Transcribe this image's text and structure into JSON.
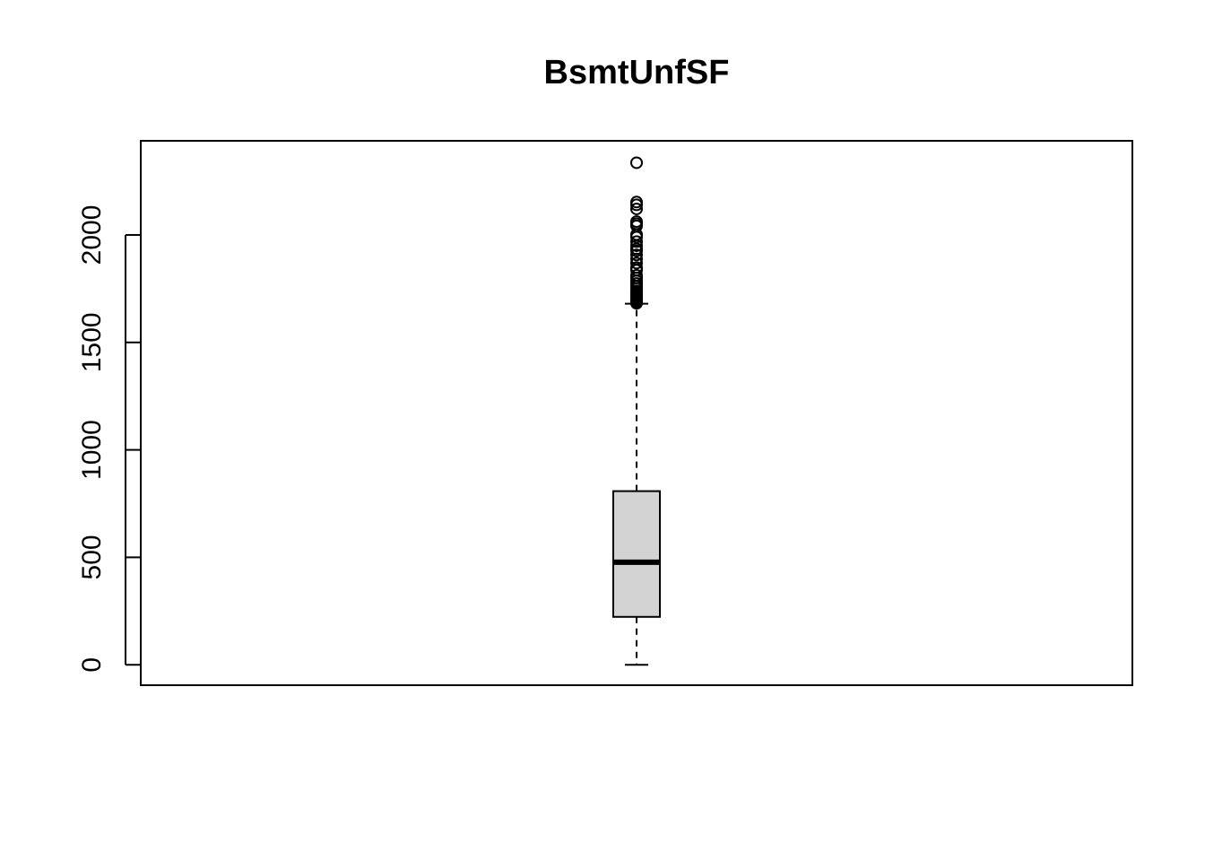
{
  "chart_data": {
    "type": "boxplot",
    "title": "BsmtUnfSF",
    "xlabel": "",
    "ylabel": "",
    "ylim": [
      -95,
      2438
    ],
    "y_ticks": [
      0,
      500,
      1000,
      1500,
      2000
    ],
    "y_tick_labels": [
      "0",
      "500",
      "1000",
      "1500",
      "2000"
    ],
    "grid": false,
    "colors": {
      "box_fill": "#d3d3d3",
      "stroke": "#000000",
      "background": "#ffffff"
    },
    "box": {
      "min": 0,
      "q1": 223,
      "median": 477,
      "q3": 808,
      "whisker_low": 0,
      "whisker_high": 1680
    },
    "outliers": [
      1682,
      1685,
      1688,
      1690,
      1694,
      1698,
      1702,
      1705,
      1710,
      1716,
      1720,
      1725,
      1732,
      1740,
      1752,
      1762,
      1774,
      1786,
      1800,
      1812,
      1836,
      1848,
      1869,
      1888,
      1907,
      1926,
      1935,
      1950,
      1969,
      1990,
      2002,
      2042,
      2052,
      2062,
      2121,
      2140,
      2153,
      2336
    ]
  }
}
